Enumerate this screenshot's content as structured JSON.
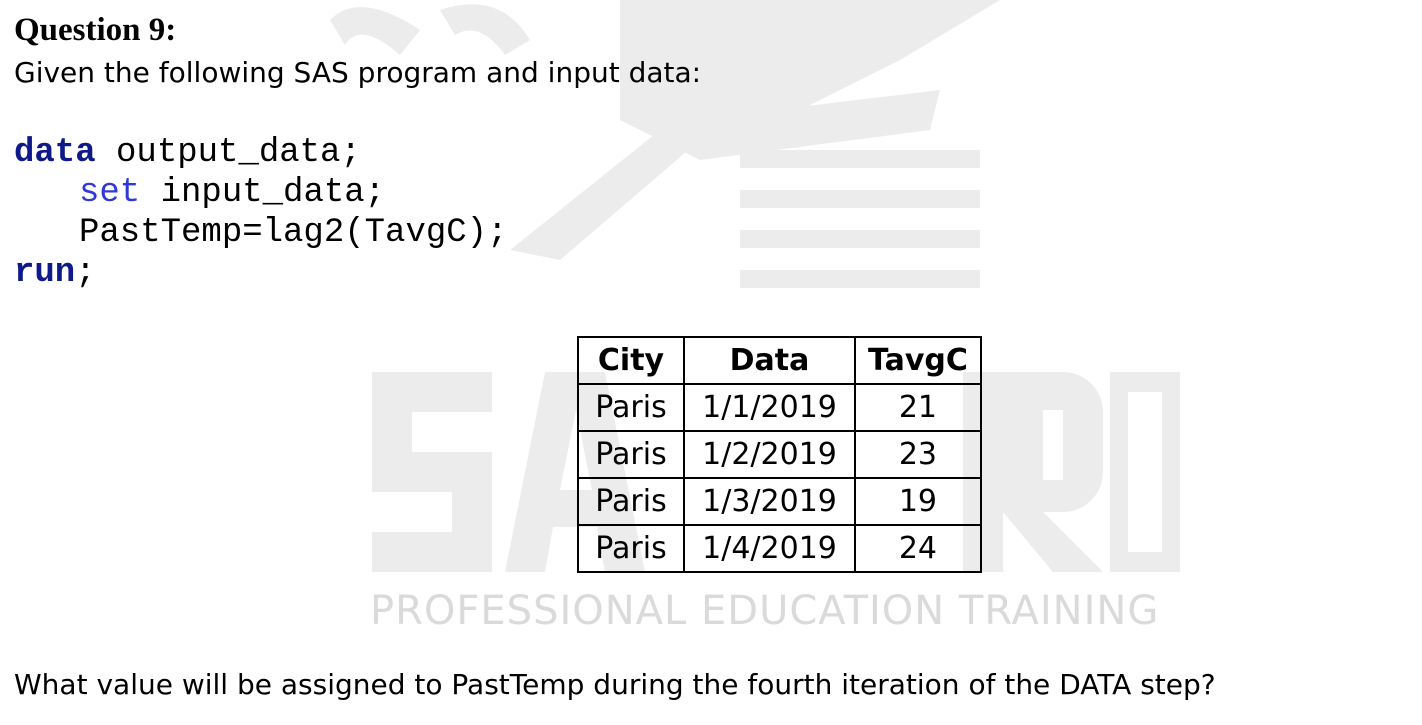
{
  "question": {
    "title": "Question 9:",
    "intro": "Given the following SAS program and input data:",
    "prompt": "What value will be assigned to PastTemp during the fourth iteration of the DATA step?"
  },
  "code": {
    "line1_keyword": "data",
    "line1_rest": " output_data;",
    "line2_keyword": "set",
    "line2_rest": " input_data;",
    "line3": "PastTemp=lag2(TavgC);",
    "line4_keyword": "run",
    "line4_rest": ";"
  },
  "table": {
    "headers": [
      "City",
      "Data",
      "TavgC"
    ],
    "rows": [
      [
        "Paris",
        "1/1/2019",
        "21"
      ],
      [
        "Paris",
        "1/2/2019",
        "23"
      ],
      [
        "Paris",
        "1/3/2019",
        "19"
      ],
      [
        "Paris",
        "1/4/2019",
        "24"
      ]
    ]
  },
  "watermark": {
    "logo_text": "SAVVY PRO",
    "tagline": "PROFESSIONAL EDUCATION TRAINING"
  },
  "colors": {
    "keyword_bold": "#0f1a8a",
    "keyword_set": "#2f39d6",
    "watermark": "#dadada"
  }
}
